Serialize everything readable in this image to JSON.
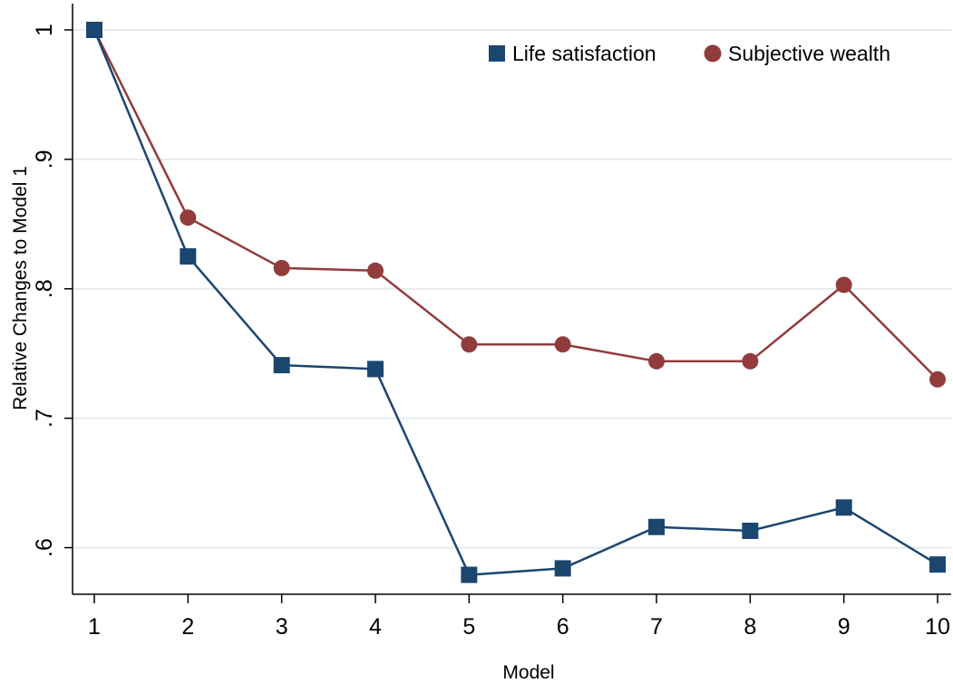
{
  "chart_data": {
    "type": "line",
    "title": "",
    "xlabel": "Model",
    "ylabel": "Relative Changes to Model 1",
    "x": [
      1,
      2,
      3,
      4,
      5,
      6,
      7,
      8,
      9,
      10
    ],
    "xticks": [
      "1",
      "2",
      "3",
      "4",
      "5",
      "6",
      "7",
      "8",
      "9",
      "10"
    ],
    "yticks": [
      {
        "value": 0.6,
        "label": ".6"
      },
      {
        "value": 0.7,
        "label": ".7"
      },
      {
        "value": 0.8,
        "label": ".8"
      },
      {
        "value": 0.9,
        "label": ".9"
      },
      {
        "value": 1.0,
        "label": "1"
      }
    ],
    "xlim": [
      1,
      10
    ],
    "ylim": [
      0.578,
      1.0
    ],
    "grid": "horizontal",
    "legend_position": "top-right",
    "series": [
      {
        "name": "Life satisfaction",
        "marker": "square",
        "color": "#1b4670",
        "values": [
          1.0,
          0.825,
          0.741,
          0.738,
          0.579,
          0.584,
          0.616,
          0.613,
          0.631,
          0.587
        ]
      },
      {
        "name": "Subjective wealth",
        "marker": "circle",
        "color": "#923b3d",
        "values": [
          1.0,
          0.855,
          0.816,
          0.814,
          0.757,
          0.757,
          0.744,
          0.744,
          0.803,
          0.73
        ]
      }
    ]
  }
}
